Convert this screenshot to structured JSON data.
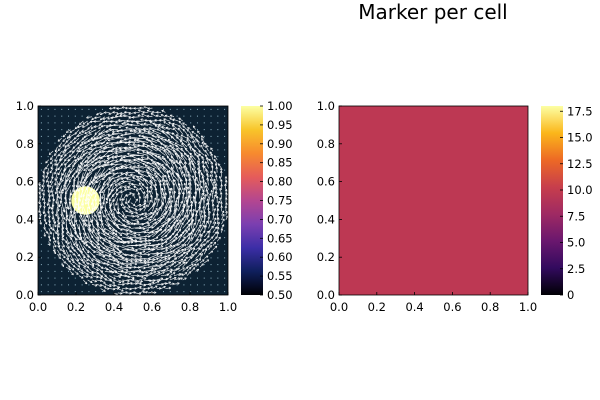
{
  "chart_data": [
    {
      "type": "heatmap",
      "title": "",
      "xlabel": "",
      "ylabel": "",
      "xlim": [
        0.0,
        1.0
      ],
      "ylim": [
        0.0,
        1.0
      ],
      "xticks": [
        "0.0",
        "0.2",
        "0.4",
        "0.6",
        "0.8",
        "1.0"
      ],
      "yticks": [
        "0.0",
        "0.2",
        "0.4",
        "0.6",
        "0.8",
        "1.0"
      ],
      "background_value": 0.5,
      "inclusion": {
        "center": [
          0.25,
          0.5
        ],
        "radius": 0.075,
        "value": 1.0
      },
      "overlay": {
        "type": "quiver",
        "color": "#ffffff",
        "description": "swirling velocity field inside circle",
        "circle_center": [
          0.5,
          0.5
        ],
        "circle_radius": 0.5
      },
      "colorbar": {
        "colormap": "thermal",
        "range": [
          0.5,
          1.0
        ],
        "ticks": [
          "0.50",
          "0.55",
          "0.60",
          "0.65",
          "0.70",
          "0.75",
          "0.80",
          "0.85",
          "0.90",
          "0.95",
          "1.00"
        ],
        "colors": [
          "#000004",
          "#0f1f5c",
          "#3c2ea7",
          "#7b3fb0",
          "#b44690",
          "#e55c5a",
          "#f78a2e",
          "#f8c52a",
          "#fcffa4"
        ]
      },
      "colors": {
        "background": "#0d2233",
        "inclusion": "#fcffa4",
        "arrows": "#ffffff"
      }
    },
    {
      "type": "heatmap",
      "title": "Marker per cell",
      "xlabel": "",
      "ylabel": "",
      "xlim": [
        0.0,
        1.0
      ],
      "ylim": [
        0.0,
        1.0
      ],
      "xticks": [
        "0.0",
        "0.2",
        "0.4",
        "0.6",
        "0.8",
        "1.0"
      ],
      "yticks": [
        "0.0",
        "0.2",
        "0.4",
        "0.6",
        "0.8",
        "1.0"
      ],
      "uniform_value": 9,
      "colorbar": {
        "colormap": "inferno",
        "range": [
          0,
          18
        ],
        "ticks": [
          "0",
          "2.5",
          "5.0",
          "7.5",
          "10.0",
          "12.5",
          "15.0",
          "17.5"
        ],
        "colors": [
          "#000004",
          "#320a5e",
          "#6a176e",
          "#9f2a63",
          "#c73e4c",
          "#ed6925",
          "#fbb61a",
          "#fcffa4"
        ]
      },
      "colors": {
        "fill": "#bd3853"
      }
    }
  ]
}
